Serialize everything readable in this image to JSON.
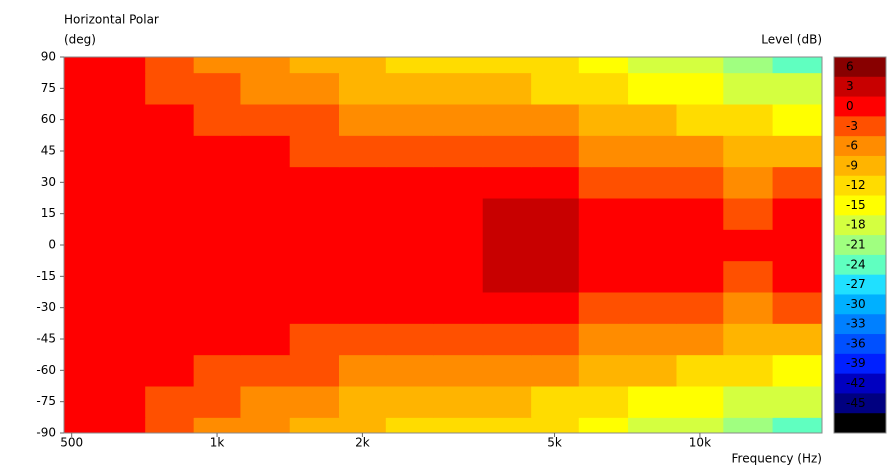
{
  "chart_data": {
    "type": "contour",
    "title": "Horizontal Polar",
    "y_label": "(deg)",
    "x_label": "Frequency (Hz)",
    "colorbar_label": "Level (dB)",
    "x_scale": "log",
    "xlim": [
      482,
      17900
    ],
    "xticks": [
      500,
      {
        "value": 1000,
        "label": "1k"
      },
      {
        "value": 2000,
        "label": "2k"
      },
      {
        "value": 5000,
        "label": "5k"
      },
      {
        "value": 10000,
        "label": "10k"
      }
    ],
    "ylim": [
      -90,
      90
    ],
    "yticks": [
      90,
      75,
      60,
      45,
      30,
      15,
      0,
      -15,
      -30,
      -45,
      -60,
      -75,
      -90
    ],
    "x": [
      500,
      630,
      800,
      1000,
      1250,
      1600,
      2000,
      2500,
      3150,
      4000,
      5000,
      6300,
      8000,
      10000,
      12500,
      16000
    ],
    "y": [
      -90,
      -75,
      -60,
      -45,
      -30,
      -15,
      0,
      15,
      30,
      45,
      60,
      75,
      90
    ],
    "z": [
      [
        -1,
        -1,
        -4,
        -6,
        -7,
        -9,
        -10,
        -11,
        -11,
        -12,
        -13,
        -15,
        -17,
        -18,
        -22,
        -24
      ],
      [
        -1,
        -1,
        -3,
        -4,
        -6,
        -7,
        -8,
        -9,
        -10,
        -10,
        -11,
        -13,
        -14,
        -15,
        -17,
        -18
      ],
      [
        0,
        0,
        -1,
        -3,
        -3,
        -4,
        -5,
        -6,
        -6,
        -6,
        -7,
        -9,
        -10,
        -11,
        -13,
        -15
      ],
      [
        0,
        0,
        0,
        -1,
        -1,
        -2,
        -3,
        -3,
        -3,
        -3,
        -4,
        -6,
        -6,
        -7,
        -9,
        -8
      ],
      [
        0,
        0,
        0,
        0,
        0,
        -1,
        -1,
        -1,
        -1,
        -1,
        -1,
        -3,
        -3,
        -4,
        -5,
        -4
      ],
      [
        0,
        0,
        0,
        0,
        0,
        0,
        0,
        0,
        0,
        3,
        2,
        -1,
        -1,
        -1,
        -2,
        -1
      ],
      [
        0,
        0,
        0,
        0,
        0,
        0,
        0,
        0,
        0,
        3,
        3,
        0,
        0,
        0,
        0,
        0
      ],
      [
        0,
        0,
        0,
        0,
        0,
        0,
        0,
        0,
        0,
        3,
        2,
        -1,
        -1,
        -1,
        -2,
        -1
      ],
      [
        0,
        0,
        0,
        0,
        0,
        -1,
        -1,
        -1,
        -1,
        -1,
        -1,
        -3,
        -3,
        -4,
        -5,
        -4
      ],
      [
        0,
        0,
        0,
        -1,
        -1,
        -2,
        -3,
        -3,
        -3,
        -3,
        -4,
        -6,
        -6,
        -7,
        -9,
        -8
      ],
      [
        0,
        0,
        -1,
        -3,
        -3,
        -4,
        -5,
        -6,
        -6,
        -6,
        -7,
        -9,
        -10,
        -11,
        -13,
        -15
      ],
      [
        -1,
        -1,
        -3,
        -4,
        -6,
        -7,
        -8,
        -9,
        -10,
        -10,
        -11,
        -13,
        -14,
        -15,
        -17,
        -18
      ],
      [
        -1,
        -1,
        -4,
        -6,
        -7,
        -9,
        -10,
        -11,
        -11,
        -12,
        -13,
        -15,
        -17,
        -18,
        -22,
        -24
      ]
    ],
    "colorbar_ticks": [
      6,
      3,
      0,
      -3,
      -6,
      -9,
      -12,
      -15,
      -18,
      -21,
      -24,
      -27,
      -30,
      -33,
      -36,
      -39,
      -42,
      -45,
      -48
    ],
    "colorbar_colors": [
      "#880000",
      "#c80000",
      "#ff0000",
      "#ff5000",
      "#ff8c00",
      "#ffb400",
      "#ffdc00",
      "#ffff00",
      "#d4ff40",
      "#a0ff80",
      "#60ffc0",
      "#20e0ff",
      "#00b0ff",
      "#0080ff",
      "#0050ff",
      "#0020ff",
      "#0000c0",
      "#000080",
      "#000000"
    ]
  }
}
